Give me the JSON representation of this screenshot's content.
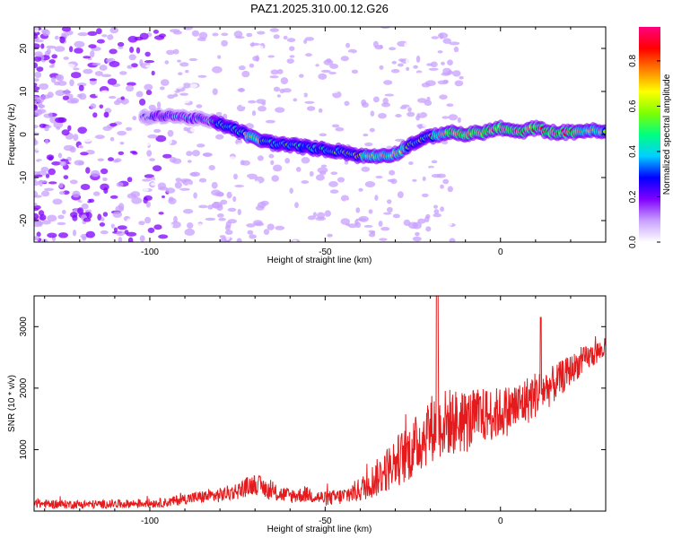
{
  "colors": {
    "snr_line": "#e41a1c",
    "frame": "#000000"
  },
  "chart_data": [
    {
      "type": "heatmap",
      "title": "PAZ1.2025.310.00.12.G26",
      "xlabel": "Height of straight line (km)",
      "ylabel": "Frequency (Hz)",
      "xlim": [
        -133,
        30
      ],
      "ylim": [
        -25,
        25
      ],
      "x_ticks": [
        -100,
        -50,
        0
      ],
      "x_tick_labels": [
        "-100",
        "-50",
        "0"
      ],
      "y_ticks": [
        -20,
        -10,
        0,
        10,
        20
      ],
      "y_tick_labels": [
        "-20",
        "-10",
        "0",
        "10",
        "20"
      ],
      "colorbar": {
        "label": "Normalized spectral amplitude",
        "range": [
          0,
          0.95
        ],
        "ticks": [
          0,
          0.2,
          0.4,
          0.6,
          0.8
        ],
        "tick_labels": [
          "0.0",
          "0.2",
          "0.4",
          "0.6",
          "0.8"
        ],
        "colormap": [
          "#ffffff",
          "#c8a0ff",
          "#8000ff",
          "#0000ff",
          "#00d0ff",
          "#00ff80",
          "#80ff00",
          "#ffff00",
          "#ff8000",
          "#ff0000",
          "#ff0080"
        ]
      },
      "ridge": {
        "x": [
          -100,
          -95,
          -90,
          -85,
          -80,
          -75,
          -70,
          -65,
          -60,
          -55,
          -50,
          -45,
          -40,
          -35,
          -30,
          -25,
          -20,
          -15,
          -10,
          -5,
          0,
          5,
          10,
          15,
          20,
          25,
          30
        ],
        "freq": [
          4,
          4.5,
          4,
          3.5,
          2.5,
          1,
          -1,
          -2,
          -2.5,
          -3,
          -3.5,
          -4,
          -5,
          -5,
          -4.5,
          -2,
          -0.5,
          0.5,
          0,
          0.5,
          1.5,
          0.5,
          1.5,
          0.5,
          0.5,
          1,
          0.5
        ],
        "amplitude": [
          0.25,
          0.3,
          0.35,
          0.35,
          0.45,
          0.5,
          0.7,
          0.45,
          0.5,
          0.45,
          0.45,
          0.5,
          0.6,
          0.65,
          0.7,
          0.55,
          0.55,
          0.8,
          0.85,
          0.8,
          0.8,
          0.85,
          0.8,
          0.85,
          0.8,
          0.75,
          0.6
        ]
      }
    },
    {
      "type": "line",
      "title": "",
      "xlabel": "Height of straight line (km)",
      "ylabel": "SNR (10 * v/v)",
      "xlim": [
        -133,
        30
      ],
      "ylim": [
        0,
        3500
      ],
      "x_ticks": [
        -100,
        -50,
        0
      ],
      "x_tick_labels": [
        "-100",
        "-50",
        "0"
      ],
      "y_ticks": [
        1000,
        2000,
        3000
      ],
      "y_tick_labels": [
        "1000",
        "2000",
        "3000"
      ],
      "series": [
        {
          "name": "SNR",
          "x": [
            -133,
            -125,
            -115,
            -105,
            -95,
            -90,
            -85,
            -80,
            -75,
            -70,
            -65,
            -60,
            -55,
            -50,
            -45,
            -40,
            -35,
            -30,
            -25,
            -20,
            -15,
            -10,
            -5,
            0,
            5,
            10,
            15,
            20,
            25,
            30
          ],
          "values": [
            120,
            110,
            110,
            120,
            140,
            200,
            230,
            260,
            330,
            450,
            300,
            250,
            270,
            200,
            240,
            350,
            550,
            800,
            1000,
            1350,
            1450,
            1450,
            1550,
            1600,
            1700,
            1900,
            2050,
            2300,
            2500,
            2650
          ],
          "noise_amplitude": [
            100,
            100,
            100,
            100,
            110,
            130,
            150,
            170,
            200,
            250,
            200,
            180,
            180,
            170,
            200,
            280,
            450,
            600,
            700,
            800,
            800,
            750,
            650,
            600,
            600,
            550,
            450,
            350,
            300,
            250
          ]
        }
      ]
    }
  ]
}
